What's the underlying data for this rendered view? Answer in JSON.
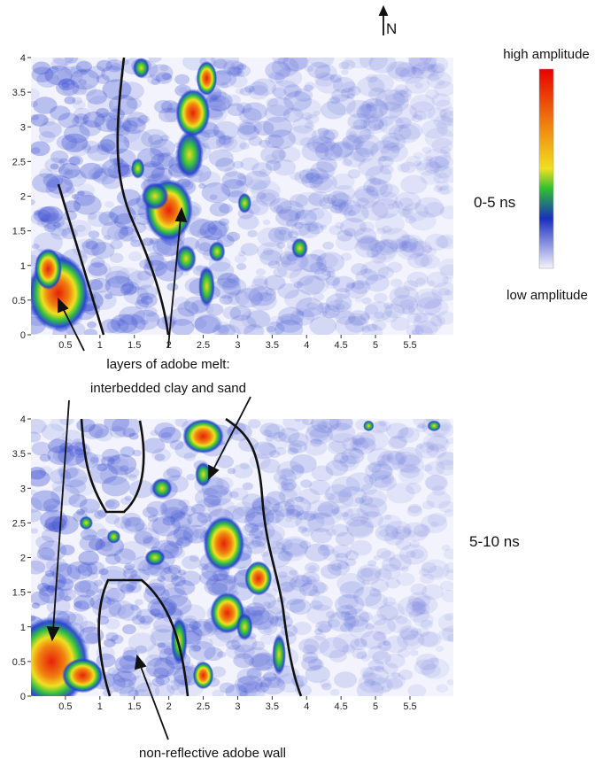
{
  "north": "N",
  "colorbar": {
    "high": "high amplitude",
    "low": "low amplitude"
  },
  "panels": [
    {
      "label": "0-5 ns",
      "xlim": [
        0,
        6.13
      ],
      "ylim": [
        0,
        4
      ],
      "xticks": [
        0.5,
        1,
        1.5,
        2,
        2.5,
        3,
        3.5,
        4,
        4.5,
        5,
        5.5
      ],
      "yticks": [
        0,
        0.5,
        1,
        1.5,
        2,
        2.5,
        3,
        3.5,
        4
      ]
    },
    {
      "label": "5-10 ns",
      "xlim": [
        0,
        6.13
      ],
      "ylim": [
        0,
        4
      ],
      "xticks": [
        0.5,
        1,
        1.5,
        2,
        2.5,
        3,
        3.5,
        4,
        4.5,
        5,
        5.5
      ],
      "yticks": [
        0,
        0.5,
        1,
        1.5,
        2,
        2.5,
        3,
        3.5,
        4
      ]
    }
  ],
  "annotations": {
    "adobe_melt": [
      "layers of adobe melt:",
      "interbedded clay and sand"
    ],
    "wall": "non-reflective adobe wall"
  }
}
